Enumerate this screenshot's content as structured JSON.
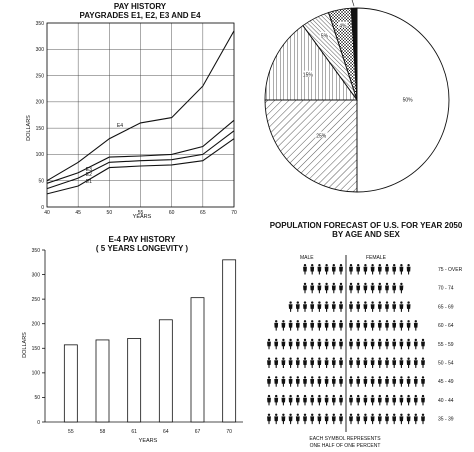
{
  "chart_data": [
    {
      "type": "line",
      "title": "PAY HISTORY",
      "subtitle": "PAYGRADES E1, E2, E3 AND E4",
      "xlabel": "YEARS",
      "ylabel": "DOLLARS",
      "x": [
        40,
        45,
        50,
        55,
        60,
        65,
        70
      ],
      "xlim": [
        40,
        70
      ],
      "ylim": [
        0,
        350
      ],
      "yticks": [
        0,
        50,
        100,
        150,
        200,
        250,
        300,
        350
      ],
      "grid": true,
      "series": [
        {
          "name": "E1",
          "values": [
            25,
            40,
            75,
            78,
            80,
            88,
            130
          ]
        },
        {
          "name": "E2",
          "values": [
            35,
            55,
            85,
            88,
            90,
            100,
            145
          ]
        },
        {
          "name": "E3",
          "values": [
            45,
            65,
            95,
            97,
            100,
            115,
            165
          ]
        },
        {
          "name": "E4",
          "values": [
            50,
            85,
            130,
            160,
            170,
            230,
            335
          ]
        }
      ]
    },
    {
      "type": "pie",
      "slices": [
        {
          "label": "50%",
          "value": 50,
          "pattern": "blank"
        },
        {
          "label": "25%",
          "value": 25,
          "pattern": "diag-right"
        },
        {
          "label": "15%",
          "value": 15,
          "pattern": "vertical"
        },
        {
          "label": "5%",
          "value": 5,
          "pattern": "diag-left"
        },
        {
          "label": "4%",
          "value": 4,
          "pattern": "cross"
        },
        {
          "label": "1%",
          "value": 1,
          "pattern": "solid"
        }
      ]
    },
    {
      "type": "bar",
      "title": "E-4 PAY HISTORY",
      "subtitle": "( 5 YEARS LONGEVITY )",
      "xlabel": "YEARS",
      "ylabel": "DOLLARS",
      "categories": [
        "55",
        "58",
        "61",
        "64",
        "67",
        "70"
      ],
      "values": [
        157,
        167,
        170,
        208,
        253,
        330
      ],
      "ylim": [
        0,
        350
      ],
      "yticks": [
        0,
        50,
        100,
        150,
        200,
        250,
        300,
        350
      ],
      "grid": false
    },
    {
      "type": "table",
      "title": "POPULATION FORECAST OF U.S. FOR YEAR 2050",
      "subtitle": "BY AGE AND SEX",
      "left_label": "MALE",
      "right_label": "FEMALE",
      "note_line1": "EACH SYMBOL REPRESENTS",
      "note_line2": "ONE HALF OF ONE PERCENT",
      "categories": [
        "75 - OVER",
        "70 - 74",
        "65 - 69",
        "60 - 64",
        "55 - 59",
        "50 - 54",
        "45 - 49",
        "40 - 44",
        "35 - 39"
      ],
      "male_symbols": [
        6,
        6,
        8,
        10,
        11,
        11,
        11,
        11,
        11
      ],
      "female_symbols": [
        9,
        8,
        9,
        10,
        11,
        11,
        11,
        11,
        11
      ]
    }
  ]
}
